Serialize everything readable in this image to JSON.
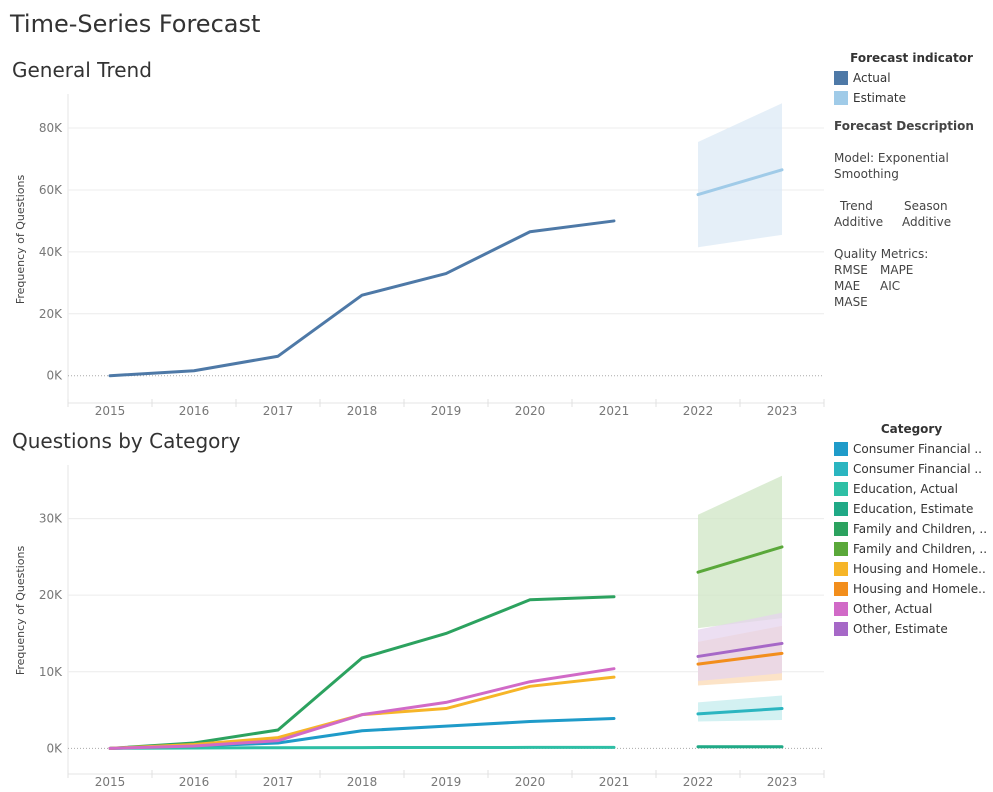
{
  "dashboard_title": "Time-Series Forecast",
  "colors": {
    "actual": "#4e79a7",
    "estimate": "#a0cbe8",
    "band": "#dceaf6",
    "grid": "#ebebeb",
    "axis_text": "#777777"
  },
  "legend1": {
    "title": "Forecast indicator",
    "items": [
      {
        "label": "Actual",
        "color": "#4e79a7"
      },
      {
        "label": "Estimate",
        "color": "#a0cbe8"
      }
    ]
  },
  "forecast_description": {
    "title": "Forecast Description",
    "model_label": "Model: Exponential Smoothing",
    "trend_header": "Trend",
    "season_header": "Season",
    "trend_value": "Additive",
    "season_value": "Additive",
    "quality_title": "Quality Metrics:",
    "metrics": [
      "RMSE",
      "MAPE",
      "MAE",
      "AIC",
      "MASE"
    ]
  },
  "legend2": {
    "title": "Category",
    "items": [
      {
        "label": "Consumer Financial ..",
        "color": "#1f9bc9"
      },
      {
        "label": "Consumer Financial ..",
        "color": "#2bb5c0"
      },
      {
        "label": "Education, Actual",
        "color": "#2ebfa5"
      },
      {
        "label": "Education, Estimate",
        "color": "#20a986"
      },
      {
        "label": "Family and Children, ..",
        "color": "#2ca25f"
      },
      {
        "label": "Family and Children, ..",
        "color": "#5aa83a"
      },
      {
        "label": "Housing and Homele..",
        "color": "#f6b528"
      },
      {
        "label": "Housing and Homele..",
        "color": "#f28e1c"
      },
      {
        "label": "Other, Actual",
        "color": "#d16ac7"
      },
      {
        "label": "Other, Estimate",
        "color": "#a668c7"
      }
    ]
  },
  "chart_data": [
    {
      "type": "line",
      "title": "General Trend",
      "xlabel": "",
      "ylabel": "Frequency of Questions",
      "x_categories": [
        "2015",
        "2016",
        "2017",
        "2018",
        "2019",
        "2020",
        "2021",
        "2022",
        "2023"
      ],
      "ylim": [
        -3000,
        91000
      ],
      "y_ticks": [
        0,
        20000,
        40000,
        60000,
        80000
      ],
      "y_tick_labels": [
        "0K",
        "20K",
        "40K",
        "60K",
        "80K"
      ],
      "grid": true,
      "legend_position": "right",
      "series": [
        {
          "name": "Actual",
          "color": "#4e79a7",
          "x": [
            "2015",
            "2016",
            "2017",
            "2018",
            "2019",
            "2020",
            "2021"
          ],
          "values": [
            0,
            1600,
            6300,
            26000,
            33000,
            46500,
            50000
          ]
        },
        {
          "name": "Estimate",
          "color": "#a0cbe8",
          "x": [
            "2022",
            "2023"
          ],
          "values": [
            58500,
            66500
          ],
          "band_upper": [
            75500,
            88000
          ],
          "band_lower": [
            41500,
            45500
          ],
          "band_color": "#dceaf6"
        }
      ]
    },
    {
      "type": "line",
      "title": "Questions by Category",
      "xlabel": "",
      "ylabel": "Frequency of Questions",
      "x_categories": [
        "2015",
        "2016",
        "2017",
        "2018",
        "2019",
        "2020",
        "2021",
        "2022",
        "2023"
      ],
      "ylim": [
        -1000,
        37000
      ],
      "y_ticks": [
        0,
        10000,
        20000,
        30000
      ],
      "y_tick_labels": [
        "0K",
        "10K",
        "20K",
        "30K"
      ],
      "grid": true,
      "legend_position": "right",
      "series": [
        {
          "name": "Consumer Financial ..",
          "color": "#1f9bc9",
          "x": [
            "2015",
            "2016",
            "2017",
            "2018",
            "2019",
            "2020",
            "2021"
          ],
          "values": [
            0,
            300,
            700,
            2300,
            2900,
            3500,
            3900
          ]
        },
        {
          "name": "Consumer Financial ..",
          "color": "#2bb5c0",
          "x": [
            "2022",
            "2023"
          ],
          "values": [
            4500,
            5200
          ],
          "band_upper": [
            6000,
            6900
          ],
          "band_lower": [
            3500,
            3700
          ],
          "band_color": "#c4ecee"
        },
        {
          "name": "Education, Actual",
          "color": "#2ebfa5",
          "x": [
            "2015",
            "2016",
            "2017",
            "2018",
            "2019",
            "2020",
            "2021"
          ],
          "values": [
            0,
            50,
            80,
            100,
            110,
            120,
            130
          ]
        },
        {
          "name": "Education, Estimate",
          "color": "#20a986",
          "x": [
            "2022",
            "2023"
          ],
          "values": [
            200,
            200
          ],
          "band_upper": [
            400,
            400
          ],
          "band_lower": [
            0,
            0
          ],
          "band_color": "#c8ece0"
        },
        {
          "name": "Family and Children, ..",
          "color": "#2ca25f",
          "x": [
            "2015",
            "2016",
            "2017",
            "2018",
            "2019",
            "2020",
            "2021"
          ],
          "values": [
            0,
            700,
            2400,
            11800,
            15000,
            19400,
            19800
          ]
        },
        {
          "name": "Family and Children, ..",
          "color": "#5aa83a",
          "x": [
            "2022",
            "2023"
          ],
          "values": [
            23000,
            26300
          ],
          "band_upper": [
            30500,
            35600
          ],
          "band_lower": [
            15700,
            17000
          ],
          "band_color": "#cfe5c4"
        },
        {
          "name": "Housing and Homele..",
          "color": "#f6b528",
          "x": [
            "2015",
            "2016",
            "2017",
            "2018",
            "2019",
            "2020",
            "2021"
          ],
          "values": [
            0,
            500,
            1400,
            4400,
            5200,
            8100,
            9300
          ]
        },
        {
          "name": "Housing and Homele..",
          "color": "#f28e1c",
          "x": [
            "2022",
            "2023"
          ],
          "values": [
            11000,
            12400
          ],
          "band_upper": [
            13900,
            16000
          ],
          "band_lower": [
            8200,
            8900
          ],
          "band_color": "#fbd9b4"
        },
        {
          "name": "Other, Actual",
          "color": "#d16ac7",
          "x": [
            "2015",
            "2016",
            "2017",
            "2018",
            "2019",
            "2020",
            "2021"
          ],
          "values": [
            0,
            300,
            1000,
            4400,
            6000,
            8700,
            10400
          ]
        },
        {
          "name": "Other, Estimate",
          "color": "#a668c7",
          "x": [
            "2022",
            "2023"
          ],
          "values": [
            12000,
            13700
          ],
          "band_upper": [
            15500,
            17700
          ],
          "band_lower": [
            8800,
            9800
          ],
          "band_color": "#e6d4ee"
        }
      ]
    }
  ]
}
